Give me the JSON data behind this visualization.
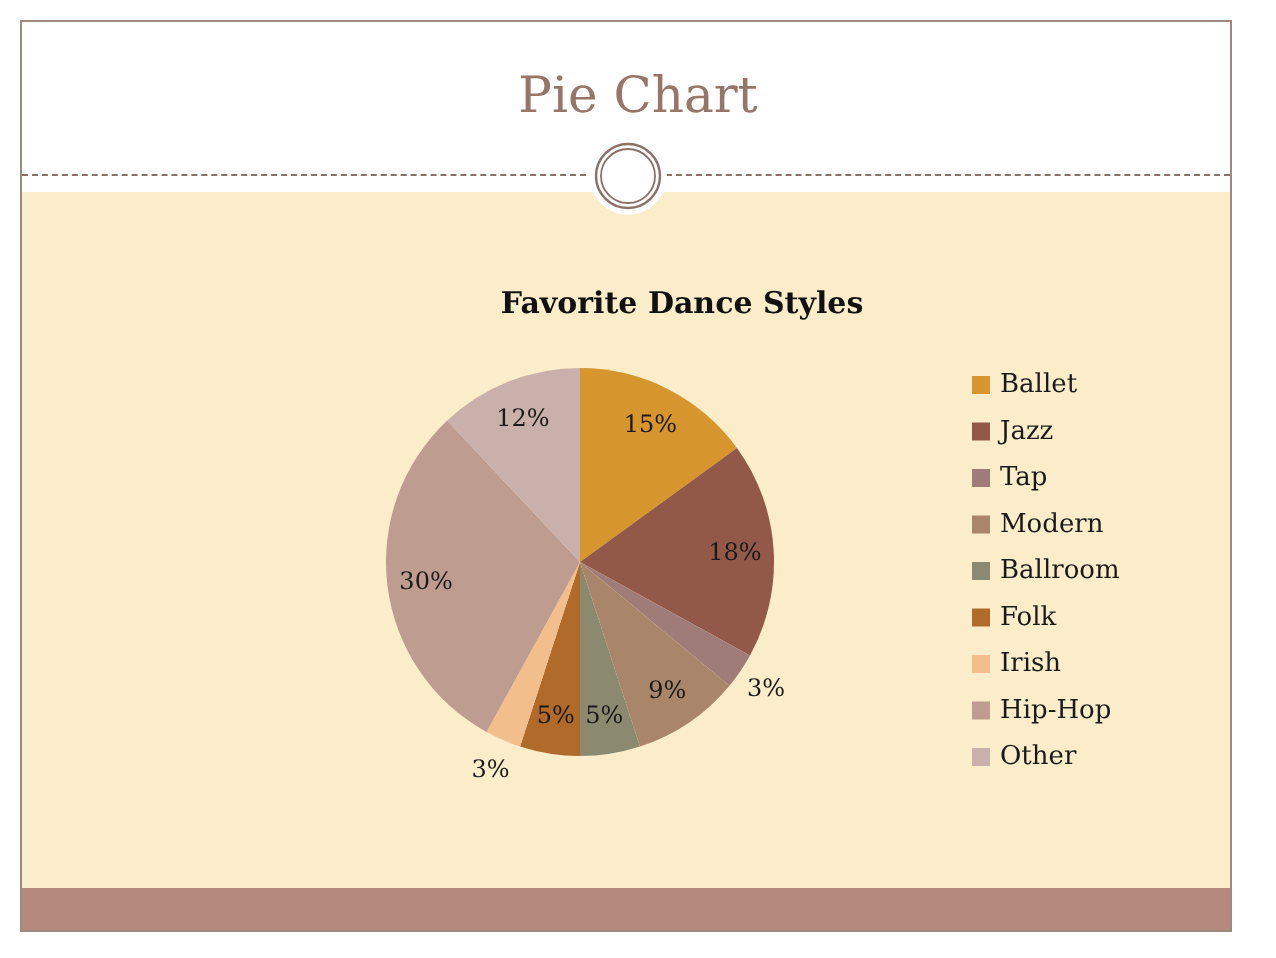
{
  "chart_data": {
    "type": "pie",
    "title": "Pie Chart",
    "subtitle": "Favorite Dance Styles",
    "categories": [
      "Ballet",
      "Jazz",
      "Tap",
      "Modern",
      "Ballroom",
      "Folk",
      "Irish",
      "Hip-Hop",
      "Other"
    ],
    "values": [
      15,
      18,
      3,
      9,
      5,
      5,
      3,
      30,
      12
    ],
    "colors": [
      "#d6952d",
      "#935948",
      "#a07c78",
      "#a9866a",
      "#8b8a70",
      "#b06a2a",
      "#f2be8c",
      "#be9c90",
      "#c9b0aa"
    ],
    "value_labels": [
      "15%",
      "18%",
      "3%",
      "9%",
      "5%",
      "5%",
      "3%",
      "30%",
      "12%"
    ],
    "legend": "right"
  }
}
